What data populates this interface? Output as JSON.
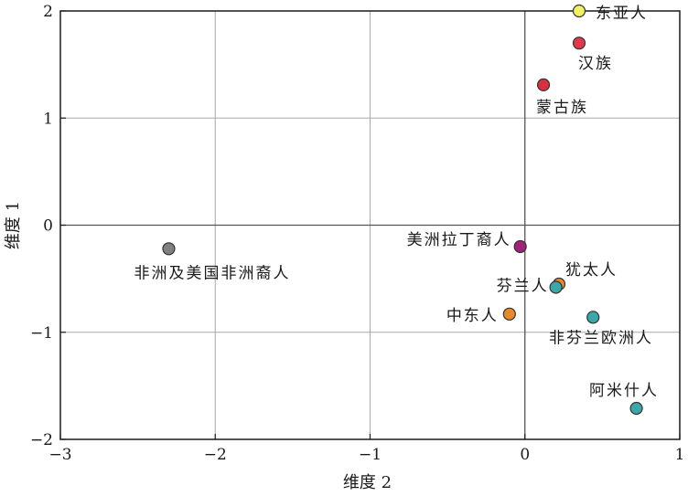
{
  "chart_data": {
    "type": "scatter",
    "title": "",
    "xlabel": "维度 2",
    "ylabel": "维度 1",
    "xlim": [
      -3,
      1
    ],
    "ylim": [
      -2,
      2
    ],
    "x_ticks": [
      -3,
      -2,
      -1,
      0,
      1
    ],
    "y_ticks": [
      -2,
      -1,
      0,
      1,
      2
    ],
    "x_tick_labels": [
      "−3",
      "−2",
      "−1",
      "0",
      "1"
    ],
    "y_tick_labels": [
      "−2",
      "−1",
      "0",
      "1",
      "2"
    ],
    "grid": true,
    "points": [
      {
        "label": "东亚人",
        "x": 0.35,
        "y": 2.0,
        "color": "#f0f060"
      },
      {
        "label": "汉族",
        "x": 0.35,
        "y": 1.7,
        "color": "#e03a4a"
      },
      {
        "label": "蒙古族",
        "x": 0.12,
        "y": 1.31,
        "color": "#d8303c"
      },
      {
        "label": "美洲拉丁裔人",
        "x": -0.03,
        "y": -0.2,
        "color": "#a0207a"
      },
      {
        "label": "非洲及美国非洲裔人",
        "x": -2.3,
        "y": -0.22,
        "color": "#808080"
      },
      {
        "label": "犹太人",
        "x": 0.22,
        "y": -0.55,
        "color": "#e88a2a"
      },
      {
        "label": "芬兰人",
        "x": 0.2,
        "y": -0.58,
        "color": "#3aa8a8"
      },
      {
        "label": "中东人",
        "x": -0.1,
        "y": -0.83,
        "color": "#e88a2a"
      },
      {
        "label": "非芬兰欧洲人",
        "x": 0.44,
        "y": -0.86,
        "color": "#3aa8a8"
      },
      {
        "label": "阿米什人",
        "x": 0.72,
        "y": -1.71,
        "color": "#3aa8a8"
      }
    ]
  }
}
